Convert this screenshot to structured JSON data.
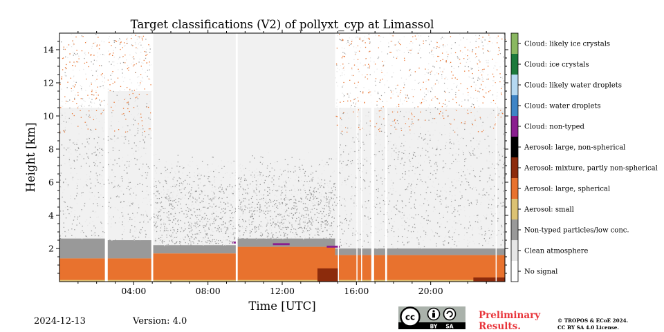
{
  "chart_data": {
    "type": "heatmap",
    "title": "Target classifications (V2) of pollyxt_cyp at Limassol",
    "xlabel": "Time [UTC]",
    "ylabel": "Height [km]",
    "xlim_hours": [
      0,
      24
    ],
    "ylim_km": [
      0,
      15
    ],
    "x_ticks": [
      {
        "value": 4,
        "label": "04:00"
      },
      {
        "value": 8,
        "label": "08:00"
      },
      {
        "value": 12,
        "label": "12:00"
      },
      {
        "value": 16,
        "label": "16:00"
      },
      {
        "value": 20,
        "label": "20:00"
      }
    ],
    "y_ticks": [
      {
        "value": 2,
        "label": "2"
      },
      {
        "value": 4,
        "label": "4"
      },
      {
        "value": 6,
        "label": "6"
      },
      {
        "value": 8,
        "label": "8"
      },
      {
        "value": 10,
        "label": "10"
      },
      {
        "value": 12,
        "label": "12"
      },
      {
        "value": 14,
        "label": "14"
      }
    ],
    "classes": [
      {
        "code": 0,
        "label": "No signal",
        "color": "#ffffff"
      },
      {
        "code": 1,
        "label": "Clean atmosphere",
        "color": "#e6e6e6"
      },
      {
        "code": 2,
        "label": "Non-typed particles/low conc.",
        "color": "#999999"
      },
      {
        "code": 3,
        "label": "Aerosol: small",
        "color": "#dcc273"
      },
      {
        "code": 4,
        "label": "Aerosol: large, spherical",
        "color": "#e8722e"
      },
      {
        "code": 5,
        "label": "Aerosol: mixture, partly non-spherical",
        "color": "#8c2b0c"
      },
      {
        "code": 6,
        "label": "Aerosol: large, non-spherical",
        "color": "#000000"
      },
      {
        "code": 7,
        "label": "Cloud: non-typed",
        "color": "#8a1f8f"
      },
      {
        "code": 8,
        "label": "Cloud: water droplets",
        "color": "#3f85c6"
      },
      {
        "code": 9,
        "label": "Cloud: likely water droplets",
        "color": "#b5d9f2"
      },
      {
        "code": 10,
        "label": "Cloud: ice crystals",
        "color": "#1c7a3c"
      },
      {
        "code": 11,
        "label": "Cloud: likely ice crystals",
        "color": "#8ab861"
      }
    ],
    "time_segments": [
      {
        "t0": 0.0,
        "t1": 2.45,
        "pbl_km": 1.4,
        "mixed_top_km": 2.6,
        "upper_noise_from_km": 10.5
      },
      {
        "t0": 2.55,
        "t1": 4.95,
        "pbl_km": 1.4,
        "mixed_top_km": 2.5,
        "upper_noise_from_km": 11.5
      },
      {
        "t0": 5.05,
        "t1": 9.5,
        "pbl_km": 1.7,
        "mixed_top_km": 2.2,
        "upper_noise_from_km": 16
      },
      {
        "t0": 9.6,
        "t1": 14.85,
        "pbl_km": 2.1,
        "mixed_top_km": 2.6,
        "upper_noise_from_km": 16
      },
      {
        "t0": 14.85,
        "t1": 24.0,
        "pbl_km": 1.6,
        "mixed_top_km": 2.0,
        "upper_noise_from_km": 10.5
      }
    ],
    "data_gaps_hours": [
      [
        2.45,
        2.6
      ],
      [
        4.95,
        5.05
      ],
      [
        9.5,
        9.6
      ],
      [
        15.0,
        15.05
      ],
      [
        16.0,
        16.05
      ],
      [
        16.25,
        16.3
      ],
      [
        16.8,
        16.95
      ],
      [
        17.55,
        17.65
      ],
      [
        23.5,
        23.55
      ]
    ],
    "cloud_events": [
      {
        "t0": 9.3,
        "t1": 9.6,
        "height_km": 2.3,
        "class": "Cloud: non-typed"
      },
      {
        "t0": 11.5,
        "t1": 12.4,
        "height_km": 2.2,
        "class": "Cloud: non-typed"
      },
      {
        "t0": 14.4,
        "t1": 15.1,
        "height_km": 2.05,
        "class": "Cloud: non-typed"
      }
    ],
    "dust_events": [
      {
        "t0": 13.9,
        "t1": 15.0,
        "top_km": 0.8,
        "class": "Aerosol: mixture, partly non-spherical"
      },
      {
        "t0": 22.3,
        "t1": 24.0,
        "top_km": 0.25,
        "class": "Aerosol: mixture, partly non-spherical"
      }
    ]
  },
  "footer": {
    "date": "2024-12-13",
    "version": "Version: 4.0",
    "preliminary_line1": "Preliminary",
    "preliminary_line2": "Results.",
    "copyright_line1": "© TROPOS & ECoE 2024.",
    "copyright_line2": "CC BY SA 4.0 License.",
    "license_badge": {
      "cc": "cc",
      "by": "BY",
      "sa": "SA"
    }
  }
}
